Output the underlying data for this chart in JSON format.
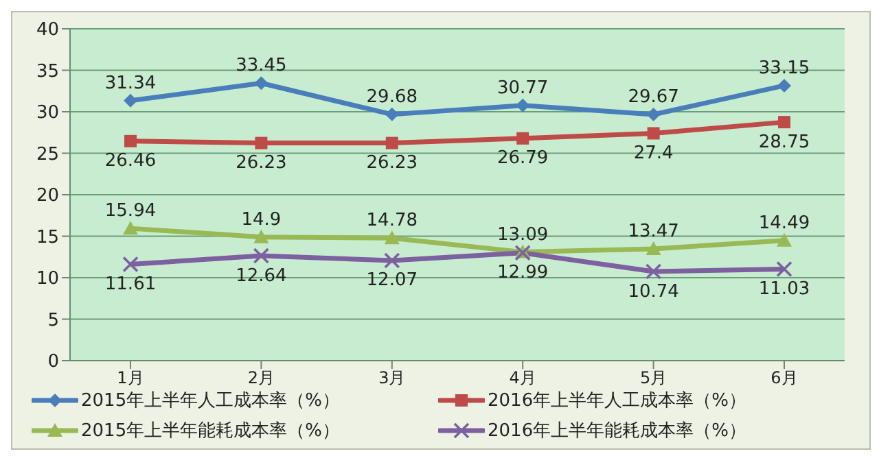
{
  "chart_data": {
    "type": "line",
    "categories": [
      "1月",
      "2月",
      "3月",
      "4月",
      "5月",
      "6月"
    ],
    "series": [
      {
        "name": "2015年上半年人工成本率（%）",
        "color": "#4a7ebb",
        "marker": "diamond",
        "values": [
          31.34,
          33.45,
          29.68,
          30.77,
          29.67,
          33.15
        ]
      },
      {
        "name": "2016年上半年人工成本率（%）",
        "color": "#be4b48",
        "marker": "square",
        "values": [
          26.46,
          26.23,
          26.23,
          26.79,
          27.4,
          28.75
        ]
      },
      {
        "name": "2015年上半年能耗成本率（%）",
        "color": "#98b954",
        "marker": "triangle",
        "values": [
          15.94,
          14.9,
          14.78,
          13.09,
          13.47,
          14.49
        ]
      },
      {
        "name": "2016年上半年能耗成本率（%）",
        "color": "#7d60a0",
        "marker": "cross",
        "values": [
          11.61,
          12.64,
          12.07,
          12.99,
          10.74,
          11.03
        ]
      }
    ],
    "ylim": [
      0,
      40
    ],
    "yticks": [
      0,
      5,
      10,
      15,
      20,
      25,
      30,
      35,
      40
    ],
    "grid": "y",
    "legend": "bottom",
    "data_labels": true,
    "line_style": "solid"
  }
}
